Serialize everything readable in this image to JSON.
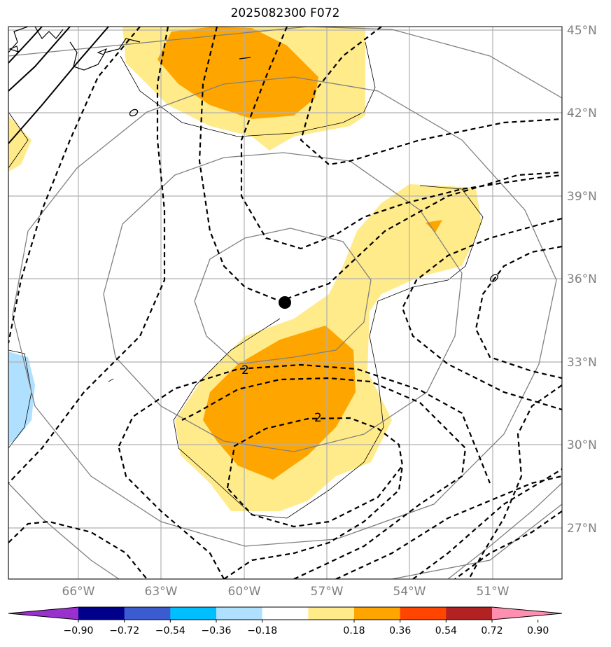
{
  "title": "2025082300 F072",
  "map": {
    "lon_labels": [
      "66°W",
      "63°W",
      "60°W",
      "57°W",
      "54°W",
      "51°W"
    ],
    "lat_labels": [
      "45°N",
      "42°N",
      "39°N",
      "36°N",
      "33°N",
      "30°N",
      "27°N"
    ],
    "center_marker": {
      "lon": -58.5,
      "lat": 35.1
    },
    "contour_labels": [
      "0",
      "0",
      "2",
      "2"
    ],
    "colors": {
      "fill_light": "#ffeb8a",
      "fill_orange": "#ffa500",
      "fill_dark_orange": "#ff8c00",
      "fill_light_blue": "#b0e0ff",
      "grid": "#b0b0b0",
      "range_rings": "#808080",
      "contour": "#000000"
    }
  },
  "colorbar": {
    "colors": [
      "#9932cc",
      "#00008b",
      "#3b5bd0",
      "#00bfff",
      "#b0e0ff",
      "#ffffff",
      "#ffeb8a",
      "#ffa500",
      "#ff4500",
      "#b22222",
      "#ff8fb0"
    ],
    "tick_labels": [
      "−0.90",
      "−0.72",
      "−0.54",
      "−0.36",
      "−0.18",
      "0.18",
      "0.36",
      "0.54",
      "0.72",
      "0.90"
    ]
  }
}
